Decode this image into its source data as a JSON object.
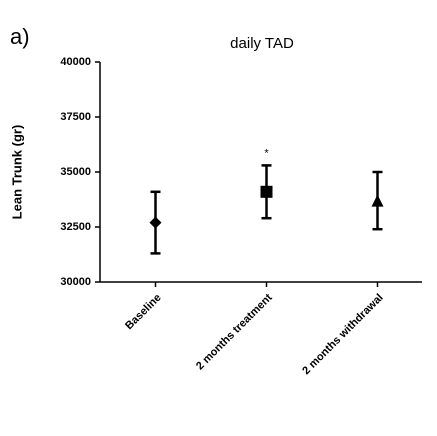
{
  "panel_label": "a)",
  "chart_data": {
    "type": "errorbar",
    "title": "daily TAD",
    "y_label": "Lean Trunk (gr)",
    "categories": [
      "Baseline",
      "2 months treatment",
      "2 months withdrawal"
    ],
    "values": [
      32700,
      34100,
      33700
    ],
    "errors": [
      1400,
      1200,
      1300
    ],
    "markers": [
      "diamond",
      "square",
      "triangle"
    ],
    "color": "#000000",
    "annotation": "*",
    "ylim": [
      30000,
      40000
    ],
    "yticks": [
      30000,
      32500,
      35000,
      37500,
      40000
    ],
    "grid": false
  }
}
